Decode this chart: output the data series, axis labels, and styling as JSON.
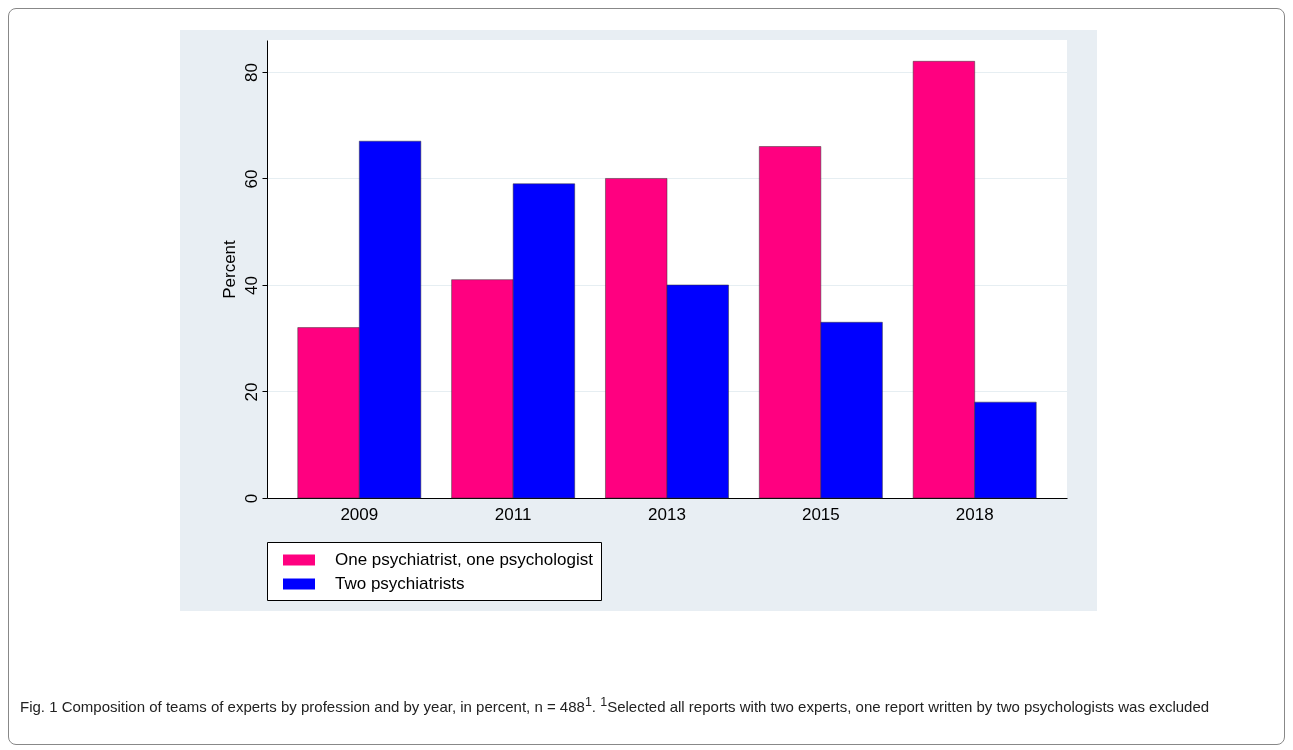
{
  "chart_data": {
    "type": "bar",
    "ylabel": "Percent",
    "categories": [
      "2009",
      "2011",
      "2013",
      "2015",
      "2018"
    ],
    "series": [
      {
        "name": "One psychiatrist, one psychologist",
        "color": "#ff0080",
        "values": [
          32,
          41,
          60,
          66,
          82
        ]
      },
      {
        "name": "Two psychiatrists",
        "color": "#0000ff",
        "values": [
          67,
          59,
          40,
          33,
          18
        ]
      }
    ],
    "ylim": [
      0,
      86
    ],
    "yticks": [
      0,
      20,
      40,
      60,
      80
    ],
    "grid": "y",
    "legend": "bottom",
    "annotations": [
      "Fig. 1 Composition of teams of experts by profession and by year, in percent, n = 488$^{1}$. $^{1}$Selected all reports with two experts, one report written by two psychologists was excluded"
    ]
  }
}
